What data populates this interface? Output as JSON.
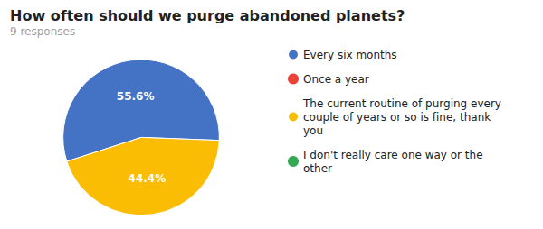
{
  "chart_data": {
    "type": "pie",
    "title": "How often should we purge abandoned planets?",
    "subtitle": "9 responses",
    "categories": [
      "Every six months",
      "Once a year",
      "The current routine of purging every\ncouple of years or so is fine, thank\nyou",
      "I don't really care one way or the\nother"
    ],
    "values": [
      55.6,
      null,
      44.4,
      null
    ],
    "value_labels": [
      "55.6%",
      null,
      "44.4%",
      null
    ],
    "colors": [
      "#4472C4",
      "#EA4335",
      "#FBBC04",
      "#34A853"
    ],
    "legend": "right",
    "data_labels": true
  }
}
